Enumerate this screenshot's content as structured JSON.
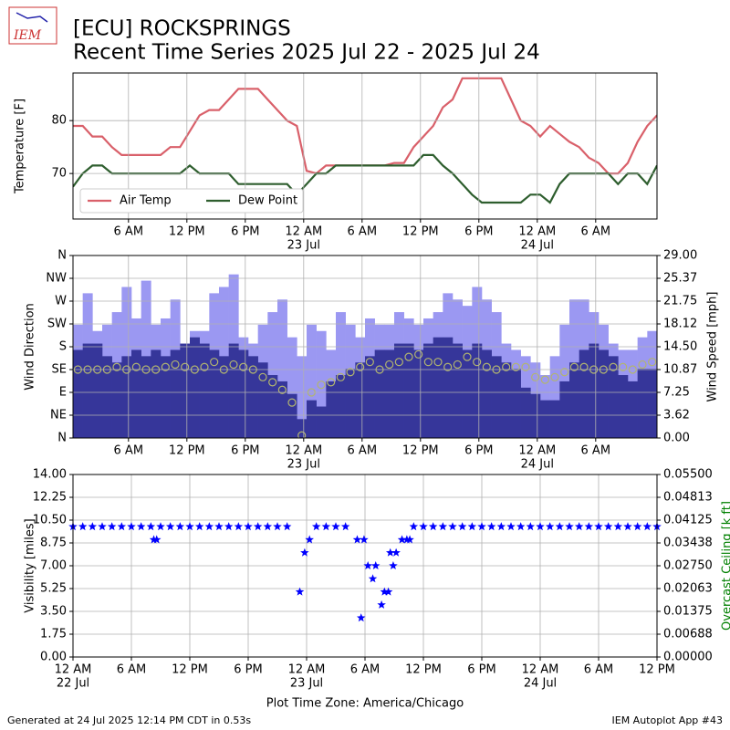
{
  "header": {
    "logo_text": "IEM",
    "title": "[ECU] ROCKSPRINGS",
    "subtitle": "Recent Time Series 2025 Jul 22 - 2025 Jul 24"
  },
  "footer": {
    "left": "Generated at 24 Jul 2025 12:14 PM CDT in 0.53s",
    "right": "IEM Autoplot App #43"
  },
  "chart_data": [
    {
      "type": "line",
      "ylabel": "Temperature [F]",
      "xlim": [
        0.3,
        60.3
      ],
      "ylim": [
        61.4,
        89
      ],
      "yticks": [
        70,
        80
      ],
      "grid": true,
      "legend": "lower left",
      "xticks": [
        {
          "value": 6,
          "label": "6 AM"
        },
        {
          "value": 12,
          "label": "12 PM"
        },
        {
          "value": 18,
          "label": "6 PM"
        },
        {
          "value": 24,
          "label": "12 AM",
          "sublabel": "23 Jul"
        },
        {
          "value": 30,
          "label": "6 AM"
        },
        {
          "value": 36,
          "label": "12 PM"
        },
        {
          "value": 42,
          "label": "6 PM"
        },
        {
          "value": 48,
          "label": "12 AM",
          "sublabel": "24 Jul"
        },
        {
          "value": 54,
          "label": "6 AM"
        }
      ],
      "x": [
        0.3,
        1.3,
        2.3,
        3.3,
        4.3,
        5.3,
        6.3,
        7.3,
        8.3,
        9.3,
        10.3,
        11.3,
        12.3,
        13.3,
        14.3,
        15.3,
        16.3,
        17.3,
        18.3,
        19.3,
        20.3,
        21.3,
        22.3,
        23.3,
        24.3,
        25.3,
        26.3,
        27.3,
        28.3,
        29.3,
        30.3,
        31.3,
        32.3,
        33.3,
        34.3,
        35.3,
        36.3,
        37.3,
        38.3,
        39.3,
        40.3,
        41.3,
        42.3,
        43.3,
        44.3,
        45.3,
        46.3,
        47.3,
        48.3,
        49.3,
        50.3,
        51.3,
        52.3,
        53.3,
        54.3,
        55.3,
        56.3,
        57.3,
        58.3,
        59.3,
        60.3
      ],
      "series": [
        {
          "name": "Air Temp",
          "color": "#d9606a",
          "style": "line",
          "values": [
            79,
            79,
            77,
            77,
            75,
            73.5,
            73.5,
            73.5,
            73.5,
            73.5,
            75,
            75,
            78,
            81,
            82,
            82,
            84,
            86,
            86,
            86,
            84,
            82,
            80,
            79,
            70.5,
            70,
            71.5,
            71.5,
            71.5,
            71.5,
            71.5,
            71.5,
            71.5,
            72,
            72,
            75,
            77,
            79,
            82.5,
            84,
            88,
            88,
            88,
            88,
            88,
            84,
            80,
            79,
            77,
            79,
            77.5,
            76,
            75,
            73,
            72,
            70,
            70,
            72,
            76,
            79,
            81
          ]
        },
        {
          "name": "Dew Point",
          "color": "#2e5e2e",
          "style": "line",
          "values": [
            67.5,
            70,
            71.5,
            71.5,
            70,
            70,
            70,
            70,
            70,
            70,
            70,
            70,
            71.5,
            70,
            70,
            70,
            70,
            68,
            68,
            68,
            68,
            68,
            68,
            66,
            68,
            70,
            70,
            71.5,
            71.5,
            71.5,
            71.5,
            71.5,
            71.5,
            71.5,
            71.5,
            71.5,
            73.5,
            73.5,
            71.5,
            70,
            68,
            66,
            64.5,
            64.5,
            64.5,
            64.5,
            64.5,
            66,
            66,
            64.5,
            68,
            70,
            70,
            70,
            70,
            70,
            68,
            70,
            70,
            68,
            71.5
          ]
        }
      ]
    },
    {
      "type": "bar",
      "ylabel": "Wind Direction",
      "y2label": "Wind Speed [mph]",
      "xlim": [
        0.3,
        60.3
      ],
      "ylim": [
        0,
        360
      ],
      "y2lim": [
        0,
        29
      ],
      "grid": true,
      "yticks": [
        {
          "value": 0,
          "label": "N"
        },
        {
          "value": 45,
          "label": "NE"
        },
        {
          "value": 90,
          "label": "E"
        },
        {
          "value": 135,
          "label": "SE"
        },
        {
          "value": 180,
          "label": "S"
        },
        {
          "value": 225,
          "label": "SW"
        },
        {
          "value": 270,
          "label": "W"
        },
        {
          "value": 315,
          "label": "NW"
        },
        {
          "value": 360,
          "label": "N"
        }
      ],
      "y2ticks": [
        {
          "value": 0,
          "label": "0.00"
        },
        {
          "value": 3.625,
          "label": "3.62"
        },
        {
          "value": 7.25,
          "label": "7.25"
        },
        {
          "value": 10.875,
          "label": "10.87"
        },
        {
          "value": 14.5,
          "label": "14.50"
        },
        {
          "value": 18.125,
          "label": "18.12"
        },
        {
          "value": 21.75,
          "label": "21.75"
        },
        {
          "value": 25.375,
          "label": "25.37"
        },
        {
          "value": 29,
          "label": "29.00"
        }
      ],
      "xticks": [
        {
          "value": 6,
          "label": "6 AM"
        },
        {
          "value": 12,
          "label": "12 PM"
        },
        {
          "value": 18,
          "label": "6 PM"
        },
        {
          "value": 24,
          "label": "12 AM",
          "sublabel": "23 Jul"
        },
        {
          "value": 30,
          "label": "6 AM"
        },
        {
          "value": 36,
          "label": "12 PM"
        },
        {
          "value": 42,
          "label": "6 PM"
        },
        {
          "value": 48,
          "label": "12 AM",
          "sublabel": "24 Jul"
        },
        {
          "value": 54,
          "label": "6 AM"
        }
      ],
      "x": [
        0.8,
        1.8,
        2.8,
        3.8,
        4.8,
        5.8,
        6.8,
        7.8,
        8.8,
        9.8,
        10.8,
        11.8,
        12.8,
        13.8,
        14.8,
        15.8,
        16.8,
        17.8,
        18.8,
        19.8,
        20.8,
        21.8,
        22.8,
        23.8,
        24.8,
        25.8,
        26.8,
        27.8,
        28.8,
        29.8,
        30.8,
        31.8,
        32.8,
        33.8,
        34.8,
        35.8,
        36.8,
        37.8,
        38.8,
        39.8,
        40.8,
        41.8,
        42.8,
        43.8,
        44.8,
        45.8,
        46.8,
        47.8,
        48.8,
        49.8,
        50.8,
        51.8,
        52.8,
        53.8,
        54.8,
        55.8,
        56.8,
        57.8,
        58.8,
        59.8
      ],
      "series": [
        {
          "color": "#9b98f2",
          "style": "bar",
          "axis": "y2",
          "values": [
            18,
            23,
            17,
            18,
            20,
            24,
            19,
            25,
            18,
            19,
            22,
            15,
            17,
            17,
            23,
            24,
            26,
            16,
            15,
            18,
            20,
            22,
            16,
            13,
            18,
            17,
            14,
            20,
            18,
            16,
            19,
            18,
            18,
            20,
            19,
            18,
            19,
            20,
            23,
            22,
            21,
            24,
            22,
            20,
            15,
            14,
            13,
            12,
            10,
            13,
            18,
            22,
            22,
            20,
            18,
            15,
            14,
            14,
            16,
            17
          ]
        },
        {
          "color": "#36369a",
          "style": "bar",
          "axis": "y2",
          "values": [
            14,
            15,
            15,
            13,
            12,
            13,
            14,
            13,
            14,
            13,
            14,
            15,
            16,
            15,
            14,
            13,
            15,
            14,
            13,
            12,
            10,
            9,
            7,
            3,
            6,
            5,
            9,
            10,
            11,
            12,
            13,
            14,
            14,
            15,
            15,
            14,
            15,
            16,
            16,
            15,
            14,
            15,
            14,
            13,
            12,
            11,
            8,
            7,
            6,
            6,
            9,
            12,
            14,
            15,
            14,
            13,
            10,
            9,
            11,
            11
          ]
        },
        {
          "color": "#b2b56f",
          "style": "circle",
          "values": [
            135,
            135,
            135,
            135,
            140,
            135,
            140,
            135,
            135,
            140,
            145,
            140,
            135,
            140,
            150,
            135,
            145,
            140,
            135,
            120,
            110,
            95,
            70,
            5,
            90,
            105,
            110,
            120,
            130,
            140,
            150,
            135,
            145,
            150,
            160,
            165,
            150,
            150,
            140,
            145,
            160,
            150,
            140,
            135,
            140,
            140,
            140,
            120,
            115,
            120,
            130,
            140,
            140,
            135,
            135,
            140,
            140,
            135,
            145,
            150
          ]
        }
      ]
    },
    {
      "type": "scatter",
      "ylabel": "Visibility [miles]",
      "y2label": "Overcast Ceiling [k ft]",
      "y2label_color": "#008000",
      "xlabel": "Plot Time Zone: America/Chicago",
      "xlim": [
        0,
        60
      ],
      "ylim": [
        0,
        14
      ],
      "y2lim": [
        0,
        0.055
      ],
      "grid": true,
      "yticks": [
        {
          "value": 0,
          "label": "0.00"
        },
        {
          "value": 1.75,
          "label": "1.75"
        },
        {
          "value": 3.5,
          "label": "3.50"
        },
        {
          "value": 5.25,
          "label": "5.25"
        },
        {
          "value": 7,
          "label": "7.00"
        },
        {
          "value": 8.75,
          "label": "8.75"
        },
        {
          "value": 10.5,
          "label": "10.50"
        },
        {
          "value": 12.25,
          "label": "12.25"
        },
        {
          "value": 14,
          "label": "14.00"
        }
      ],
      "y2ticks": [
        {
          "value": 0,
          "label": "0.00000"
        },
        {
          "value": 0.006875,
          "label": "0.00688"
        },
        {
          "value": 0.01375,
          "label": "0.01375"
        },
        {
          "value": 0.020625,
          "label": "0.02063"
        },
        {
          "value": 0.0275,
          "label": "0.02750"
        },
        {
          "value": 0.034375,
          "label": "0.03438"
        },
        {
          "value": 0.04125,
          "label": "0.04125"
        },
        {
          "value": 0.048125,
          "label": "0.04813"
        },
        {
          "value": 0.055,
          "label": "0.05500"
        }
      ],
      "xticks": [
        {
          "value": 0,
          "label": "12 AM",
          "sublabel": "22 Jul"
        },
        {
          "value": 6,
          "label": "6 AM"
        },
        {
          "value": 12,
          "label": "12 PM"
        },
        {
          "value": 18,
          "label": "6 PM"
        },
        {
          "value": 24,
          "label": "12 AM",
          "sublabel": "23 Jul"
        },
        {
          "value": 30,
          "label": "6 AM"
        },
        {
          "value": 36,
          "label": "12 PM"
        },
        {
          "value": 42,
          "label": "6 PM"
        },
        {
          "value": 48,
          "label": "12 AM",
          "sublabel": "24 Jul"
        },
        {
          "value": 54,
          "label": "6 AM"
        },
        {
          "value": 60,
          "label": "12 PM"
        }
      ],
      "series": [
        {
          "color": "#0000ff",
          "style": "star",
          "x": [
            0,
            1,
            2,
            3,
            4,
            5,
            6,
            7,
            8,
            8.3,
            8.6,
            9,
            10,
            11,
            12,
            13,
            14,
            15,
            16,
            17,
            18,
            19,
            20,
            21,
            22,
            23.3,
            23.8,
            24.3,
            25,
            26,
            27,
            28,
            29.2,
            29.6,
            29.9,
            30.3,
            30.8,
            31.1,
            31.7,
            32,
            32.4,
            32.6,
            32.9,
            33.2,
            33.8,
            34.3,
            34.6,
            35,
            36,
            37,
            38,
            39,
            40,
            41,
            42,
            43,
            44,
            45,
            46,
            47,
            48,
            49,
            50,
            51,
            52,
            53,
            54,
            55,
            56,
            57,
            58,
            59,
            60
          ],
          "values": [
            10,
            10,
            10,
            10,
            10,
            10,
            10,
            10,
            10,
            9,
            9,
            10,
            10,
            10,
            10,
            10,
            10,
            10,
            10,
            10,
            10,
            10,
            10,
            10,
            10,
            5,
            8,
            9,
            10,
            10,
            10,
            10,
            9,
            3,
            9,
            7,
            6,
            7,
            4,
            5,
            5,
            8,
            7,
            8,
            9,
            9,
            9,
            10,
            10,
            10,
            10,
            10,
            10,
            10,
            10,
            10,
            10,
            10,
            10,
            10,
            10,
            10,
            10,
            10,
            10,
            10,
            10,
            10,
            10,
            10,
            10,
            10,
            10
          ]
        }
      ]
    }
  ]
}
